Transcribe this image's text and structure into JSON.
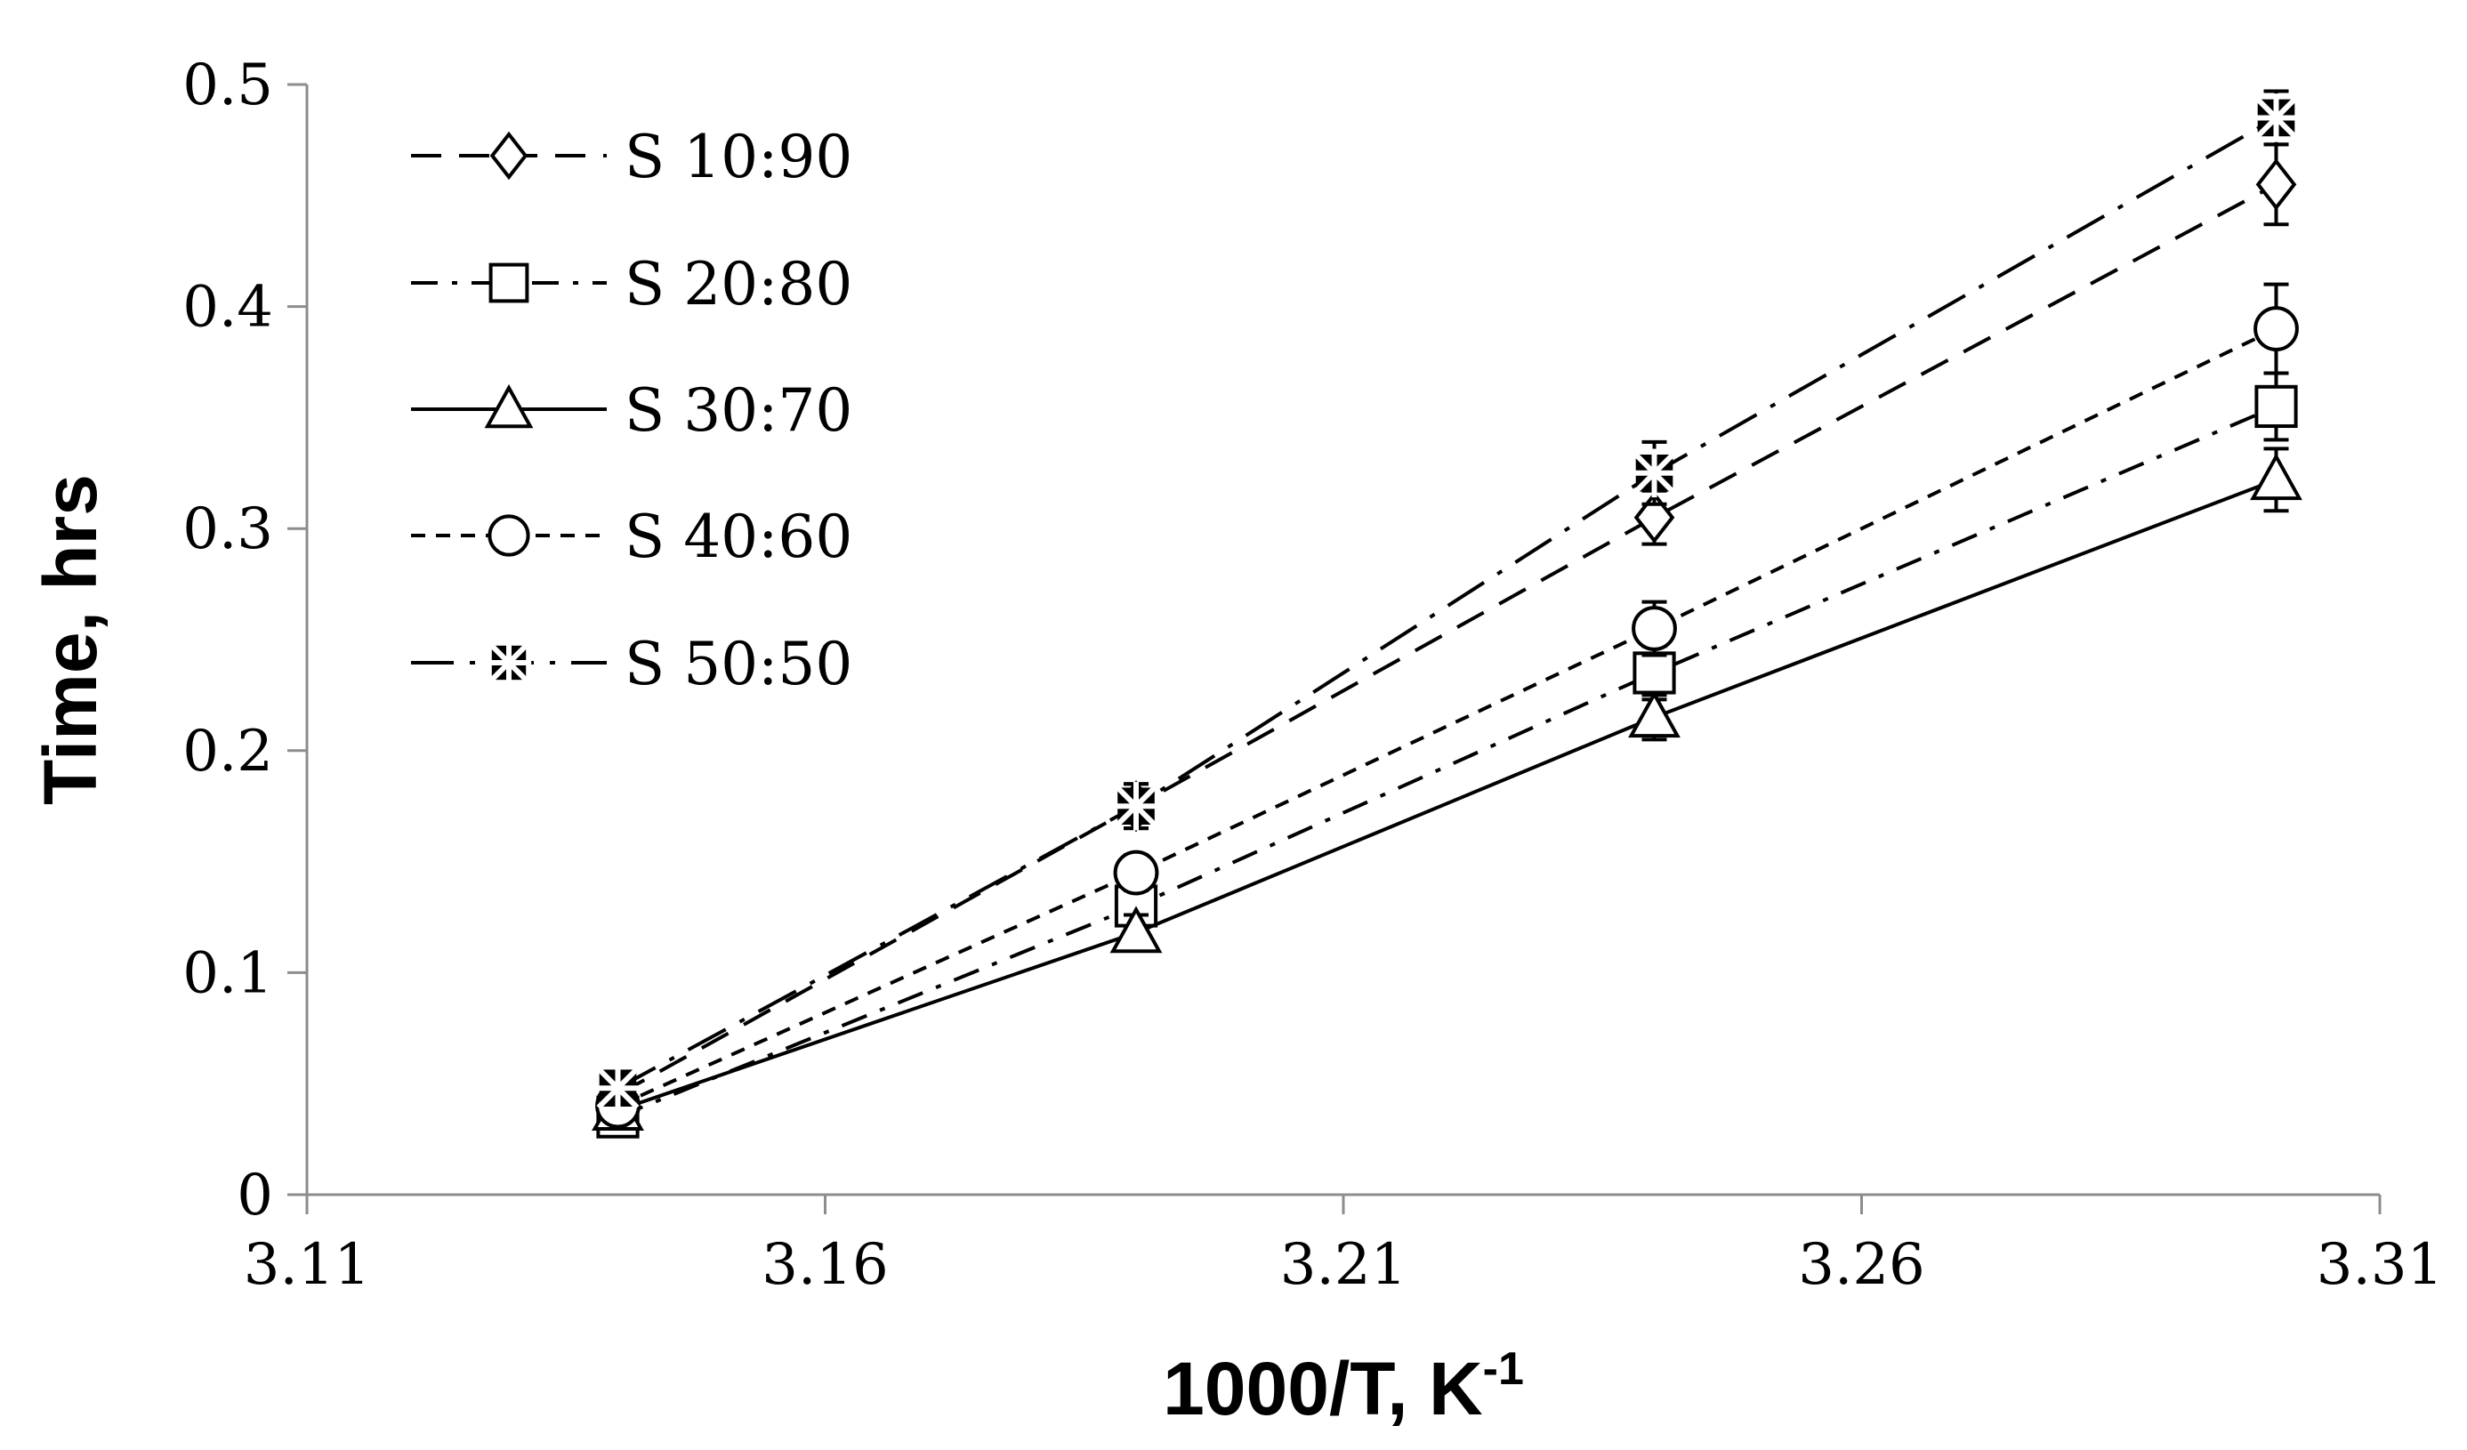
{
  "chart_data": {
    "type": "line",
    "title": "",
    "xlabel": "1000/T, K",
    "xlabel_sup": "-1",
    "ylabel": "Time, hrs",
    "xlim": [
      3.11,
      3.31
    ],
    "ylim": [
      0,
      0.5
    ],
    "x_ticks": [
      3.11,
      3.16,
      3.21,
      3.26,
      3.31
    ],
    "y_ticks": [
      0,
      0.1,
      0.2,
      0.3,
      0.4,
      0.5
    ],
    "x_tick_labels": [
      "3.11",
      "3.16",
      "3.21",
      "3.26",
      "3.31"
    ],
    "y_tick_labels": [
      "0",
      "0.1",
      "0.2",
      "0.3",
      "0.4",
      "0.5"
    ],
    "grid": false,
    "legend_position": "top-left",
    "x": [
      3.14,
      3.19,
      3.24,
      3.3
    ],
    "series": [
      {
        "name": "S 10:90",
        "marker": "diamond",
        "dash": "long-dash",
        "values": [
          0.045,
          0.175,
          0.305,
          0.455
        ],
        "errors": [
          0.004,
          0.01,
          0.012,
          0.018
        ]
      },
      {
        "name": "S 20:80",
        "marker": "square",
        "dash": "dash-dot",
        "values": [
          0.035,
          0.13,
          0.235,
          0.355
        ],
        "errors": [
          0.003,
          0.008,
          0.012,
          0.015
        ]
      },
      {
        "name": "S 30:70",
        "marker": "triangle",
        "dash": "solid",
        "values": [
          0.038,
          0.118,
          0.215,
          0.322
        ],
        "errors": [
          0.003,
          0.008,
          0.01,
          0.014
        ]
      },
      {
        "name": "S 40:60",
        "marker": "circle",
        "dash": "short-dash",
        "values": [
          0.04,
          0.145,
          0.255,
          0.39
        ],
        "errors": [
          0.004,
          0.008,
          0.012,
          0.02
        ]
      },
      {
        "name": "S 50:50",
        "marker": "star-square",
        "dash": "long-dash-dot",
        "values": [
          0.048,
          0.175,
          0.325,
          0.485
        ],
        "errors": [
          0.004,
          0.01,
          0.014,
          0.012
        ]
      }
    ]
  }
}
